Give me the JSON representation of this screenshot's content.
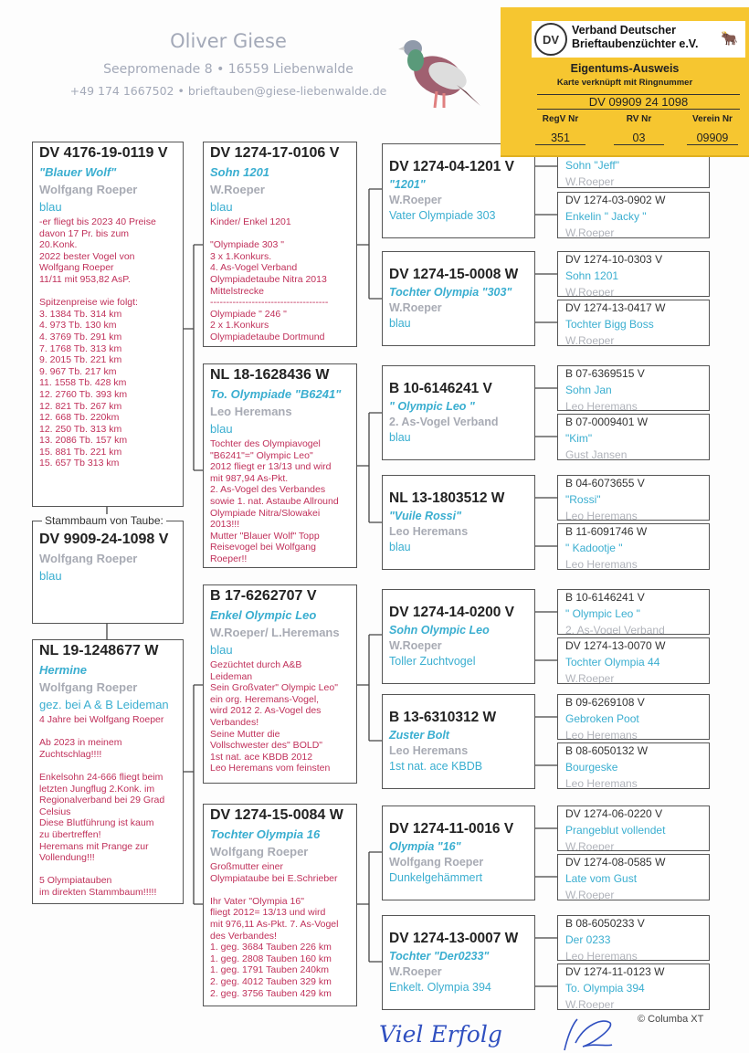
{
  "header": {
    "name": "Oliver Giese",
    "address": "Seepromenade 8 • 16559 Liebenwalde",
    "contact": "+49 174 1667502 • brieftauben@giese-liebenwalde.de"
  },
  "card": {
    "org": "Verband Deutscher Brieftaubenzüchter e.V.",
    "title": "Eigentums-Ausweis",
    "subtitle": "Karte verknüpft mit Ringnummer",
    "ring": "DV 09909 24 1098",
    "labels": [
      "RegV Nr",
      "RV Nr",
      "Verein Nr"
    ],
    "values": [
      "351",
      "03",
      "09909"
    ],
    "bg_color": "#f6c630"
  },
  "subject": {
    "label": "Stammbaum von Taube:",
    "ring": "DV 9909-24-1098 V",
    "owner": "Wolfgang Roeper",
    "color": "blau"
  },
  "father": {
    "ring": "DV 4176-19-0119 V",
    "name": "\"Blauer Wolf\"",
    "owner": "Wolfgang Roeper",
    "color": "blau",
    "notes": "-er fliegt bis 2023 40 Preise\ndavon 17 Pr. bis zum\n20.Konk.\n2022 bester Vogel von\nWolfgang Roeper\n11/11 mit 953,82 AsP.\n\nSpitzenpreise wie folgt:\n 3.  1384 Tb.  314 km\n 4.    973  Tb.  130 km\n 4.  3769 Tb.  291 km\n 7.  1768 Tb.  313 km\n 9.  2015 Tb.  221 km\n 9.    967 Tb.   217 km\n11. 1558 Tb.  428 km\n12. 2760 Tb.  393 km\n12.  821  Tb.  267 km\n12.    668  Tb.  220km\n12.    250 Tb.   313 km\n13.  2086 Tb.  157 km\n15.    881  Tb.  221 km\n15.   657  Tb  313 km"
  },
  "mother": {
    "ring": "NL 19-1248677 W",
    "name": "Hermine",
    "owner": "Wolfgang Roeper",
    "color": "gez. bei A & B Leideman",
    "notes": "4 Jahre bei Wolfgang Roeper\n\nAb 2023 in meinem\nZuchtschlag!!!!\n\nEnkelsohn 24-666 fliegt beim\nletzten Jungflug 2.Konk. im\nRegionalverband bei 29 Grad\nCelsius\nDiese Blutführung ist kaum\nzu übertreffen!\nHeremans mit Prange  zur\nVollendung!!!\n\n5 Olympiatauben\nim direkten Stammbaum!!!!!"
  },
  "grandparents": [
    {
      "ring": "DV 1274-17-0106 V",
      "name": "Sohn 1201",
      "owner": "W.Roeper",
      "color": "blau",
      "notes": "Kinder/ Enkel 1201\n\n\"Olympiade 303 \"\n3 x 1.Konkurs.\n4. As-Vogel Verband\nOlympiadetaube Nitra 2013\nMittelstrecke\n-------------------------------------\nOlympiade \" 246 \"\n2 x 1.Konkurs\nOlympiadetaube Dortmund"
    },
    {
      "ring": "NL 18-1628436 W",
      "name": "To. Olympiade \"B6241\"",
      "owner": "Leo Heremans",
      "color": "blau",
      "notes": "Tochter des Olympiavogel\n\"B6241\"=\" Olympic Leo\"\n2012 fliegt er 13/13 und wird\nmit 987,94 As-Pkt.\n2. As-Vogel des Verbandes\nsowie 1. nat. Astaube Allround\nOlympiade Nitra/Slowakei\n2013!!!\nMutter \"Blauer Wolf\" Topp\nReisevogel bei Wolfgang\nRoeper!!"
    },
    {
      "ring": "B 17-6262707 V",
      "name": "Enkel Olympic Leo",
      "owner": "W.Roeper/ L.Heremans",
      "color": "blau",
      "notes": "Gezüchtet durch A&B\nLeideman\nSein Großvater\" Olympic Leo\"\nein org. Heremans-Vogel,\nwird 2012 2. As-Vogel des\nVerbandes!\nSeine Mutter die\nVollschwester des\" BOLD\"\n1st nat. ace KBDB 2012\nLeo Heremans vom feinsten"
    },
    {
      "ring": "DV 1274-15-0084 W",
      "name": "Tochter Olympia 16",
      "owner": "Wolfgang Roeper",
      "color": "",
      "notes": "Großmutter einer\nOlympiataube bei E.Schrieber\n\nIhr Vater \"Olympia 16\"\n fliegt 2012= 13/13 und wird\nmit 976,11 As-Pkt. 7. As-Vogel\ndes Verbandes!\n1. geg. 3684 Tauben 226 km\n1. geg. 2808 Tauben 160 km\n1. geg. 1791 Tauben  240km\n2. geg. 4012 Tauben 329 km\n2. geg. 3756 Tauben 429 km"
    }
  ],
  "great_grandparents": [
    {
      "ring": "DV 1274-04-1201 V",
      "name": "\"1201\"",
      "owner": "W.Roeper",
      "color": "Vater Olympiade 303"
    },
    {
      "ring": "DV 1274-15-0008 W",
      "name": "Tochter Olympia \"303\"",
      "owner": "W.Roeper",
      "color": "blau"
    },
    {
      "ring": "B 10-6146241 V",
      "name": "\" Olympic Leo \"",
      "owner": "2. As-Vogel Verband",
      "color": "blau"
    },
    {
      "ring": "NL 13-1803512 W",
      "name": "\"Vuile Rossi\"",
      "owner": "Leo Heremans",
      "color": "blau"
    },
    {
      "ring": "DV 1274-14-0200 V",
      "name": "Sohn Olympic Leo",
      "owner": "W.Roeper",
      "color": "Toller Zuchtvogel"
    },
    {
      "ring": "B 13-6310312 W",
      "name": "Zuster Bolt",
      "owner": "Leo Heremans",
      "color": "1st nat. ace  KBDB"
    },
    {
      "ring": "DV 1274-11-0016 V",
      "name": "Olympia \"16\"",
      "owner": "Wolfgang Roeper",
      "color": "Dunkelgehämmert"
    },
    {
      "ring": "DV 1274-13-0007 W",
      "name": "Tochter \"Der0233\"",
      "owner": "W.Roeper",
      "color": "Enkelt. Olympia 394"
    }
  ],
  "gg_grandparents": [
    {
      "ring": "",
      "name": "Sohn \"Jeff\"",
      "owner": "W.Roeper"
    },
    {
      "ring": "DV 1274-03-0902 W",
      "name": "Enkelin \" Jacky \"",
      "owner": "W.Roeper"
    },
    {
      "ring": "DV 1274-10-0303 V",
      "name": "Sohn 1201",
      "owner": "W.Roeper"
    },
    {
      "ring": "DV 1274-13-0417 W",
      "name": "Tochter Bigg Boss",
      "owner": "W.Roeper"
    },
    {
      "ring": "B 07-6369515 V",
      "name": "Sohn Jan",
      "owner": "Leo Heremans"
    },
    {
      "ring": "B 07-0009401 W",
      "name": "\"Kim\"",
      "owner": "Gust Jansen"
    },
    {
      "ring": "B 04-6073655 V",
      "name": "\"Rossi\"",
      "owner": "Leo Heremans"
    },
    {
      "ring": "B 11-6091746 W",
      "name": "\" Kadootje \"",
      "owner": "Leo Heremans"
    },
    {
      "ring": "B 10-6146241 V",
      "name": "\" Olympic Leo \"",
      "owner": "2. As-Vogel Verband"
    },
    {
      "ring": "DV 1274-13-0070 W",
      "name": "Tochter Olympia 44",
      "owner": "W.Roeper"
    },
    {
      "ring": "B 09-6269108 V",
      "name": "Gebroken Poot",
      "owner": "Leo Heremans"
    },
    {
      "ring": "B 08-6050132 W",
      "name": "Bourgeske",
      "owner": "Leo Heremans"
    },
    {
      "ring": "DV 1274-06-0220 V",
      "name": "Prangeblut vollendet",
      "owner": "W.Roeper"
    },
    {
      "ring": "DV 1274-08-0585 W",
      "name": "Late vom Gust",
      "owner": "W.Roeper"
    },
    {
      "ring": "B 08-6050233 V",
      "name": "Der 0233",
      "owner": "Leo Heremans"
    },
    {
      "ring": "DV 1274-11-0123 W",
      "name": "To. Olympia 394",
      "owner": "W.Roeper"
    }
  ],
  "footer": {
    "copyright": "© Columba XT",
    "handwriting": "Viel Erfolg"
  }
}
